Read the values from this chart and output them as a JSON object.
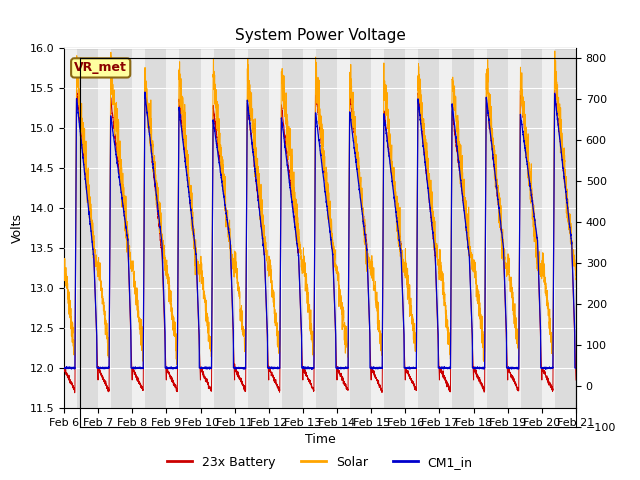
{
  "title": "System Power Voltage",
  "xlabel": "Time",
  "ylabel_left": "Volts",
  "ylim_left": [
    11.5,
    16.0
  ],
  "ylim_right": [
    -100,
    800
  ],
  "yticks_left": [
    11.5,
    12.0,
    12.5,
    13.0,
    13.5,
    14.0,
    14.5,
    15.0,
    15.5,
    16.0
  ],
  "yticks_right": [
    -100,
    0,
    100,
    200,
    300,
    400,
    500,
    600,
    700,
    800
  ],
  "xtick_labels": [
    "Feb 6",
    "Feb 7",
    "Feb 8",
    "Feb 9",
    "Feb 10",
    "Feb 11",
    "Feb 12",
    "Feb 13",
    "Feb 14",
    "Feb 15",
    "Feb 16",
    "Feb 17",
    "Feb 18",
    "Feb 19",
    "Feb 20",
    "Feb 21"
  ],
  "n_days": 15,
  "color_battery": "#CC0000",
  "color_solar": "#FFA500",
  "color_cm1": "#0000CC",
  "background_day": "#DCDCDC",
  "background_night": "#F0F0F0",
  "background_fig": "#FFFFFF",
  "legend_labels": [
    "23x Battery",
    "Solar",
    "CM1_in"
  ],
  "annotation_text": "VR_met",
  "grid_color": "#FFFFFF",
  "title_fontsize": 11,
  "axis_fontsize": 9,
  "tick_fontsize": 8
}
